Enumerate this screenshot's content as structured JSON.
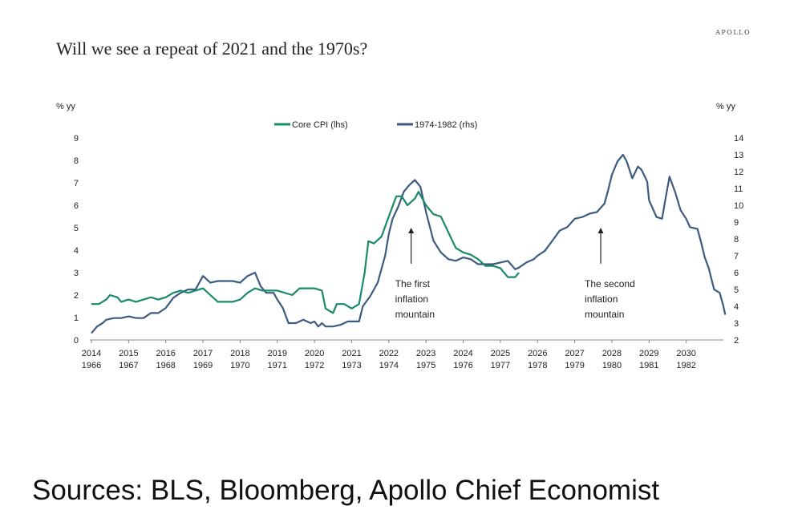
{
  "brand": "APOLLO",
  "title": "Will we see a repeat of 2021 and the 1970s?",
  "source": "Sources: BLS, Bloomberg, Apollo Chief Economist",
  "chart_data": {
    "type": "line",
    "left_axis_label": "% yy",
    "right_axis_label": "% yy",
    "left_ylim": [
      0,
      9
    ],
    "right_ylim": [
      2,
      14
    ],
    "left_ticks": [
      "0",
      "1",
      "2",
      "3",
      "4",
      "5",
      "6",
      "7",
      "8",
      "9"
    ],
    "right_ticks": [
      "2",
      "3",
      "4",
      "5",
      "6",
      "7",
      "8",
      "9",
      "10",
      "11",
      "12",
      "13",
      "14"
    ],
    "x_ticks_primary": [
      "2014",
      "2015",
      "2016",
      "2017",
      "2018",
      "2019",
      "2020",
      "2021",
      "2022",
      "2023",
      "2024",
      "2025",
      "2026",
      "2027",
      "2028",
      "2029",
      "2030"
    ],
    "x_ticks_secondary": [
      "1966",
      "1967",
      "1968",
      "1969",
      "1970",
      "1971",
      "1972",
      "1973",
      "1974",
      "1975",
      "1976",
      "1977",
      "1978",
      "1979",
      "1980",
      "1981",
      "1982"
    ],
    "x_range": [
      2014,
      2031
    ],
    "grid": false,
    "legend_position": "top-center",
    "series": [
      {
        "name": "Core CPI (lhs)",
        "axis": "left",
        "color": "#1a8a6a",
        "points": [
          [
            2014.0,
            1.6
          ],
          [
            2014.2,
            1.6
          ],
          [
            2014.4,
            1.8
          ],
          [
            2014.5,
            2.0
          ],
          [
            2014.7,
            1.9
          ],
          [
            2014.8,
            1.7
          ],
          [
            2015.0,
            1.8
          ],
          [
            2015.2,
            1.7
          ],
          [
            2015.4,
            1.8
          ],
          [
            2015.6,
            1.9
          ],
          [
            2015.8,
            1.8
          ],
          [
            2016.0,
            1.9
          ],
          [
            2016.2,
            2.1
          ],
          [
            2016.4,
            2.2
          ],
          [
            2016.6,
            2.1
          ],
          [
            2016.8,
            2.2
          ],
          [
            2017.0,
            2.3
          ],
          [
            2017.2,
            2.0
          ],
          [
            2017.4,
            1.7
          ],
          [
            2017.6,
            1.7
          ],
          [
            2017.8,
            1.7
          ],
          [
            2018.0,
            1.8
          ],
          [
            2018.2,
            2.1
          ],
          [
            2018.4,
            2.3
          ],
          [
            2018.6,
            2.2
          ],
          [
            2018.8,
            2.2
          ],
          [
            2019.0,
            2.2
          ],
          [
            2019.2,
            2.1
          ],
          [
            2019.4,
            2.0
          ],
          [
            2019.6,
            2.3
          ],
          [
            2019.8,
            2.3
          ],
          [
            2020.0,
            2.3
          ],
          [
            2020.2,
            2.2
          ],
          [
            2020.3,
            1.4
          ],
          [
            2020.5,
            1.2
          ],
          [
            2020.6,
            1.6
          ],
          [
            2020.8,
            1.6
          ],
          [
            2021.0,
            1.4
          ],
          [
            2021.2,
            1.6
          ],
          [
            2021.35,
            3.0
          ],
          [
            2021.45,
            4.4
          ],
          [
            2021.6,
            4.3
          ],
          [
            2021.8,
            4.6
          ],
          [
            2022.0,
            5.5
          ],
          [
            2022.2,
            6.4
          ],
          [
            2022.35,
            6.4
          ],
          [
            2022.5,
            6.0
          ],
          [
            2022.7,
            6.3
          ],
          [
            2022.8,
            6.6
          ],
          [
            2023.0,
            6.0
          ],
          [
            2023.2,
            5.6
          ],
          [
            2023.4,
            5.5
          ],
          [
            2023.6,
            4.8
          ],
          [
            2023.8,
            4.1
          ],
          [
            2024.0,
            3.9
          ],
          [
            2024.2,
            3.8
          ],
          [
            2024.4,
            3.6
          ],
          [
            2024.6,
            3.3
          ],
          [
            2024.8,
            3.3
          ],
          [
            2025.0,
            3.2
          ],
          [
            2025.2,
            2.8
          ],
          [
            2025.4,
            2.8
          ],
          [
            2025.5,
            3.0
          ]
        ]
      },
      {
        "name": "1974-1982 (rhs)",
        "axis": "right",
        "color": "#3d5a80",
        "points": [
          [
            2014.0,
            2.4
          ],
          [
            2014.15,
            2.8
          ],
          [
            2014.3,
            3.0
          ],
          [
            2014.4,
            3.2
          ],
          [
            2014.6,
            3.3
          ],
          [
            2014.8,
            3.3
          ],
          [
            2015.0,
            3.4
          ],
          [
            2015.2,
            3.3
          ],
          [
            2015.4,
            3.3
          ],
          [
            2015.6,
            3.6
          ],
          [
            2015.8,
            3.6
          ],
          [
            2016.0,
            3.9
          ],
          [
            2016.2,
            4.5
          ],
          [
            2016.4,
            4.8
          ],
          [
            2016.6,
            5.0
          ],
          [
            2016.8,
            5.0
          ],
          [
            2017.0,
            5.8
          ],
          [
            2017.2,
            5.4
          ],
          [
            2017.4,
            5.5
          ],
          [
            2017.6,
            5.5
          ],
          [
            2017.8,
            5.5
          ],
          [
            2018.0,
            5.4
          ],
          [
            2018.2,
            5.8
          ],
          [
            2018.4,
            6.0
          ],
          [
            2018.55,
            5.2
          ],
          [
            2018.7,
            4.8
          ],
          [
            2018.9,
            4.8
          ],
          [
            2019.0,
            4.4
          ],
          [
            2019.15,
            3.9
          ],
          [
            2019.3,
            3.0
          ],
          [
            2019.5,
            3.0
          ],
          [
            2019.7,
            3.2
          ],
          [
            2019.9,
            3.0
          ],
          [
            2020.0,
            3.1
          ],
          [
            2020.1,
            2.8
          ],
          [
            2020.2,
            3.0
          ],
          [
            2020.3,
            2.8
          ],
          [
            2020.5,
            2.8
          ],
          [
            2020.7,
            2.9
          ],
          [
            2020.9,
            3.1
          ],
          [
            2021.0,
            3.1
          ],
          [
            2021.2,
            3.1
          ],
          [
            2021.3,
            4.0
          ],
          [
            2021.5,
            4.6
          ],
          [
            2021.7,
            5.4
          ],
          [
            2021.9,
            7.0
          ],
          [
            2022.0,
            8.3
          ],
          [
            2022.1,
            9.2
          ],
          [
            2022.25,
            9.9
          ],
          [
            2022.4,
            10.8
          ],
          [
            2022.55,
            11.2
          ],
          [
            2022.7,
            11.5
          ],
          [
            2022.85,
            11.1
          ],
          [
            2023.0,
            9.6
          ],
          [
            2023.2,
            7.9
          ],
          [
            2023.4,
            7.2
          ],
          [
            2023.6,
            6.8
          ],
          [
            2023.8,
            6.7
          ],
          [
            2024.0,
            6.9
          ],
          [
            2024.2,
            6.8
          ],
          [
            2024.4,
            6.5
          ],
          [
            2024.6,
            6.5
          ],
          [
            2024.8,
            6.5
          ],
          [
            2025.0,
            6.6
          ],
          [
            2025.2,
            6.7
          ],
          [
            2025.4,
            6.2
          ],
          [
            2025.5,
            6.3
          ],
          [
            2025.7,
            6.6
          ],
          [
            2025.9,
            6.8
          ],
          [
            2026.0,
            7.0
          ],
          [
            2026.2,
            7.3
          ],
          [
            2026.4,
            7.9
          ],
          [
            2026.6,
            8.5
          ],
          [
            2026.8,
            8.7
          ],
          [
            2027.0,
            9.2
          ],
          [
            2027.2,
            9.3
          ],
          [
            2027.4,
            9.5
          ],
          [
            2027.6,
            9.6
          ],
          [
            2027.8,
            10.1
          ],
          [
            2027.9,
            10.9
          ],
          [
            2028.0,
            11.8
          ],
          [
            2028.15,
            12.6
          ],
          [
            2028.3,
            13.0
          ],
          [
            2028.4,
            12.6
          ],
          [
            2028.55,
            11.6
          ],
          [
            2028.7,
            12.3
          ],
          [
            2028.8,
            12.1
          ],
          [
            2028.95,
            11.4
          ],
          [
            2029.0,
            10.3
          ],
          [
            2029.2,
            9.3
          ],
          [
            2029.35,
            9.2
          ],
          [
            2029.45,
            10.5
          ],
          [
            2029.55,
            11.7
          ],
          [
            2029.7,
            10.8
          ],
          [
            2029.85,
            9.7
          ],
          [
            2030.0,
            9.2
          ],
          [
            2030.1,
            8.7
          ],
          [
            2030.3,
            8.6
          ],
          [
            2030.4,
            7.8
          ],
          [
            2030.5,
            6.9
          ],
          [
            2030.6,
            6.3
          ],
          [
            2030.75,
            5.0
          ],
          [
            2030.9,
            4.8
          ],
          [
            2031.0,
            4.0
          ],
          [
            2031.05,
            3.5
          ]
        ]
      }
    ],
    "annotations": [
      {
        "lines": [
          "The first",
          "inflation",
          "mountain"
        ],
        "x": 2022.6,
        "arrow_top_y": 5.0,
        "arrow_bottom_y": 3.4
      },
      {
        "lines": [
          "The second",
          "inflation",
          "mountain"
        ],
        "x": 2027.7,
        "arrow_top_y": 5.0,
        "arrow_bottom_y": 3.4
      }
    ]
  }
}
